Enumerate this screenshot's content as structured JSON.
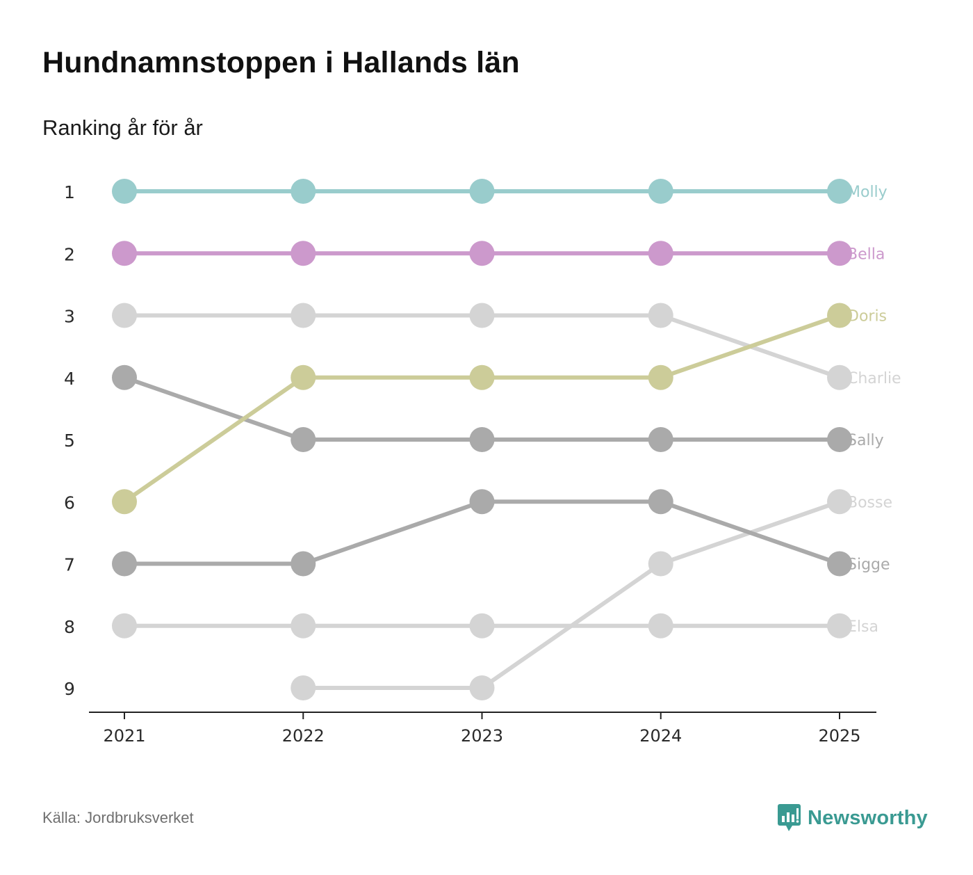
{
  "title": "Hundnamnstoppen i Hallands län",
  "subtitle": "Ranking år för år",
  "source": "Källa: Jordbruksverket",
  "brand": "Newsworthy",
  "brand_color": "#3a9a92",
  "chart_data": {
    "type": "line",
    "chart_kind": "bump",
    "x": [
      "2021",
      "2022",
      "2023",
      "2024",
      "2025"
    ],
    "y_ticks": [
      "1",
      "2",
      "3",
      "4",
      "5",
      "6",
      "7",
      "8",
      "9"
    ],
    "ylim": [
      1,
      9
    ],
    "y_inverted": true,
    "series": [
      {
        "name": "Molly",
        "color": "#99cccc",
        "values": [
          1,
          1,
          1,
          1,
          1
        ]
      },
      {
        "name": "Bella",
        "color": "#cc99cc",
        "values": [
          2,
          2,
          2,
          2,
          2
        ]
      },
      {
        "name": "Doris",
        "color": "#cccc99",
        "values": [
          6,
          4,
          4,
          4,
          3
        ]
      },
      {
        "name": "Charlie",
        "color": "#d4d4d4",
        "values": [
          3,
          3,
          3,
          3,
          4
        ]
      },
      {
        "name": "Sally",
        "color": "#aaaaaa",
        "values": [
          4,
          5,
          5,
          5,
          5
        ]
      },
      {
        "name": "Bosse",
        "color": "#d4d4d4",
        "values": [
          null,
          9,
          9,
          7,
          6
        ]
      },
      {
        "name": "Sigge",
        "color": "#aaaaaa",
        "values": [
          7,
          7,
          6,
          6,
          7
        ]
      },
      {
        "name": "Elsa",
        "color": "#d4d4d4",
        "values": [
          8,
          8,
          8,
          8,
          8
        ]
      }
    ]
  }
}
